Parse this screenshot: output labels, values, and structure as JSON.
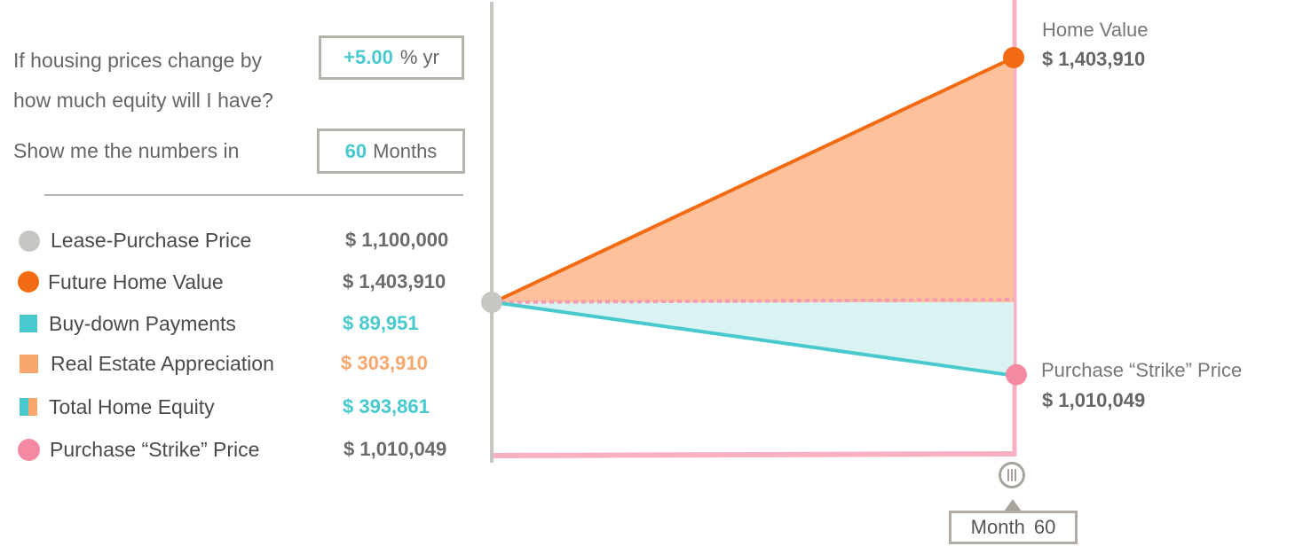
{
  "question": {
    "line1": "If housing prices change by",
    "line2": "how much equity will I have?",
    "line3": "Show me the numbers in"
  },
  "rate_input": {
    "value": "+5.00",
    "unit": "% yr"
  },
  "period_input": {
    "value": "60",
    "unit": "Months"
  },
  "legend": [
    {
      "label": "Lease-Purchase Price",
      "value": "$ 1,100,000",
      "color": "#c8c6c2",
      "marker": "circle"
    },
    {
      "label": "Future Home Value",
      "value": "$ 1,403,910",
      "color": "#f26a12",
      "marker": "circle"
    },
    {
      "label": "Buy-down Payments",
      "value": "$ 89,951",
      "color": "#48c9cd",
      "marker": "square"
    },
    {
      "label": "Real Estate Appreciation",
      "value": "$ 303,910",
      "color": "#f7a66c",
      "marker": "square"
    },
    {
      "label": "Total Home Equity",
      "value": "$ 393,861",
      "color": "#48c9cd",
      "marker": "split-square"
    },
    {
      "label": "Purchase “Strike” Price",
      "value": "$ 1,010,049",
      "color": "#f48aa2",
      "marker": "circle"
    }
  ],
  "chart_data": {
    "type": "area",
    "x": [
      0,
      60
    ],
    "series": [
      {
        "name": "Home Value",
        "values": [
          1100000,
          1403910
        ]
      },
      {
        "name": "Lease-Purchase Price",
        "values": [
          1100000,
          1100000
        ]
      },
      {
        "name": "Purchase “Strike” Price",
        "values": [
          1100000,
          1010049
        ]
      }
    ],
    "end_labels": {
      "top_title": "Home Value",
      "top_value": "$ 1,403,910",
      "bottom_title": "Purchase “Strike” Price",
      "bottom_value": "$ 1,010,049"
    },
    "month_label": "Month",
    "month_value": "60",
    "colors": {
      "home_line": "#f26a12",
      "home_fill": "#ffc19b",
      "strike_line": "#48c9cd",
      "strike_fill": "#d9f2f2",
      "baseline": "#f59ab3",
      "axis_left": "#c9c6c1",
      "frame": "#f8b0c2",
      "start_dot": "#c8c6c2",
      "strike_dot": "#f48aa2"
    }
  }
}
